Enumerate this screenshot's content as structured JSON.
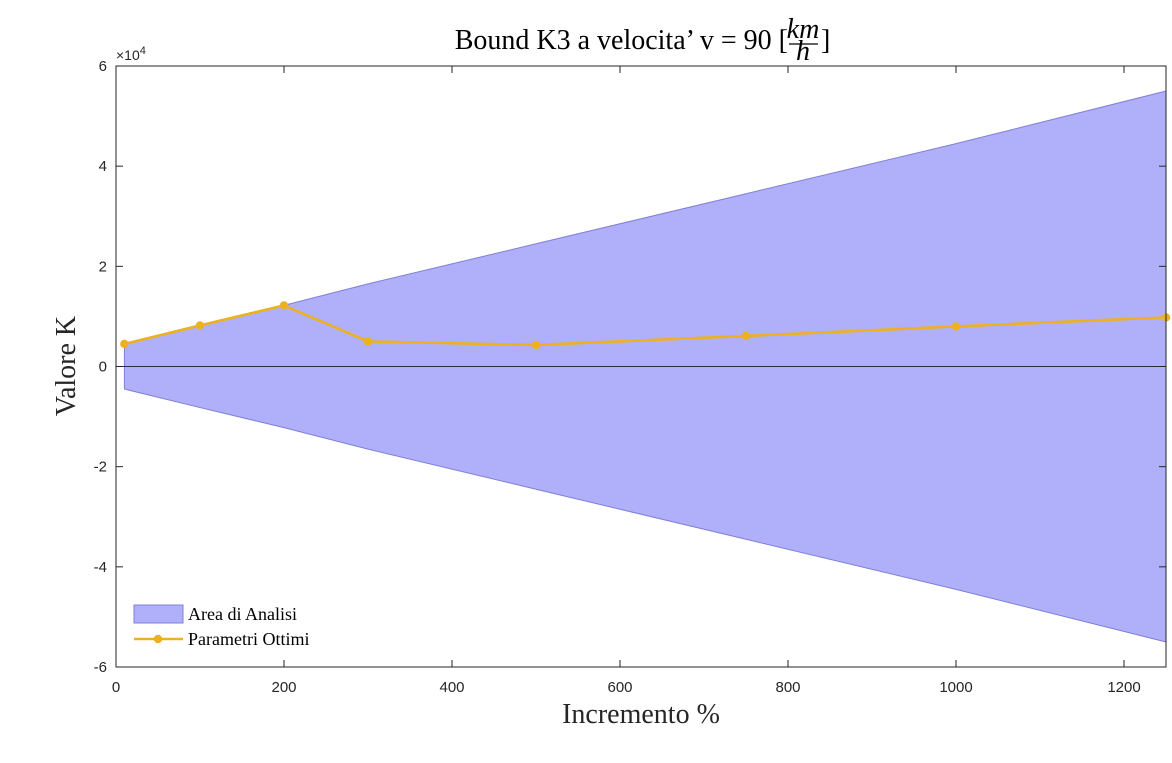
{
  "chart_data": {
    "type": "area",
    "title_main": "Bound K3 a velocita’ v = 90 [",
    "title_frac_num": "km",
    "title_frac_den": "h",
    "title_close": "]",
    "xlabel": "Incremento %",
    "ylabel": "Valore K",
    "y_multiplier_base": "×10",
    "y_multiplier_exp": "4",
    "xlim": [
      0,
      1250
    ],
    "ylim": [
      -60000,
      60000
    ],
    "x_ticks": [
      0,
      200,
      400,
      600,
      800,
      1000,
      1200
    ],
    "y_ticks": [
      -60000,
      -40000,
      -20000,
      0,
      20000,
      40000,
      60000
    ],
    "y_tick_labels": [
      "-6",
      "-4",
      "-2",
      "0",
      "2",
      "4",
      "6"
    ],
    "grid": false,
    "legend_position": "bottom-left",
    "series": [
      {
        "name": "Area di Analisi",
        "kind": "band",
        "color": "#b0b0fa",
        "edge_color": "#7f7fd9",
        "x": [
          10,
          100,
          200,
          300,
          500,
          750,
          1000,
          1250
        ],
        "upper": [
          4500,
          8200,
          12200,
          16500,
          24500,
          34500,
          44500,
          55000
        ],
        "lower": [
          -4500,
          -8200,
          -12200,
          -16500,
          -24500,
          -34500,
          -44500,
          -55000
        ]
      },
      {
        "name": "Parametri Ottimi",
        "kind": "line",
        "color": "#edb120",
        "x": [
          10,
          100,
          200,
          300,
          500,
          750,
          1000,
          1250
        ],
        "y": [
          4500,
          8200,
          12200,
          5000,
          4300,
          6100,
          8000,
          9800
        ]
      }
    ]
  }
}
